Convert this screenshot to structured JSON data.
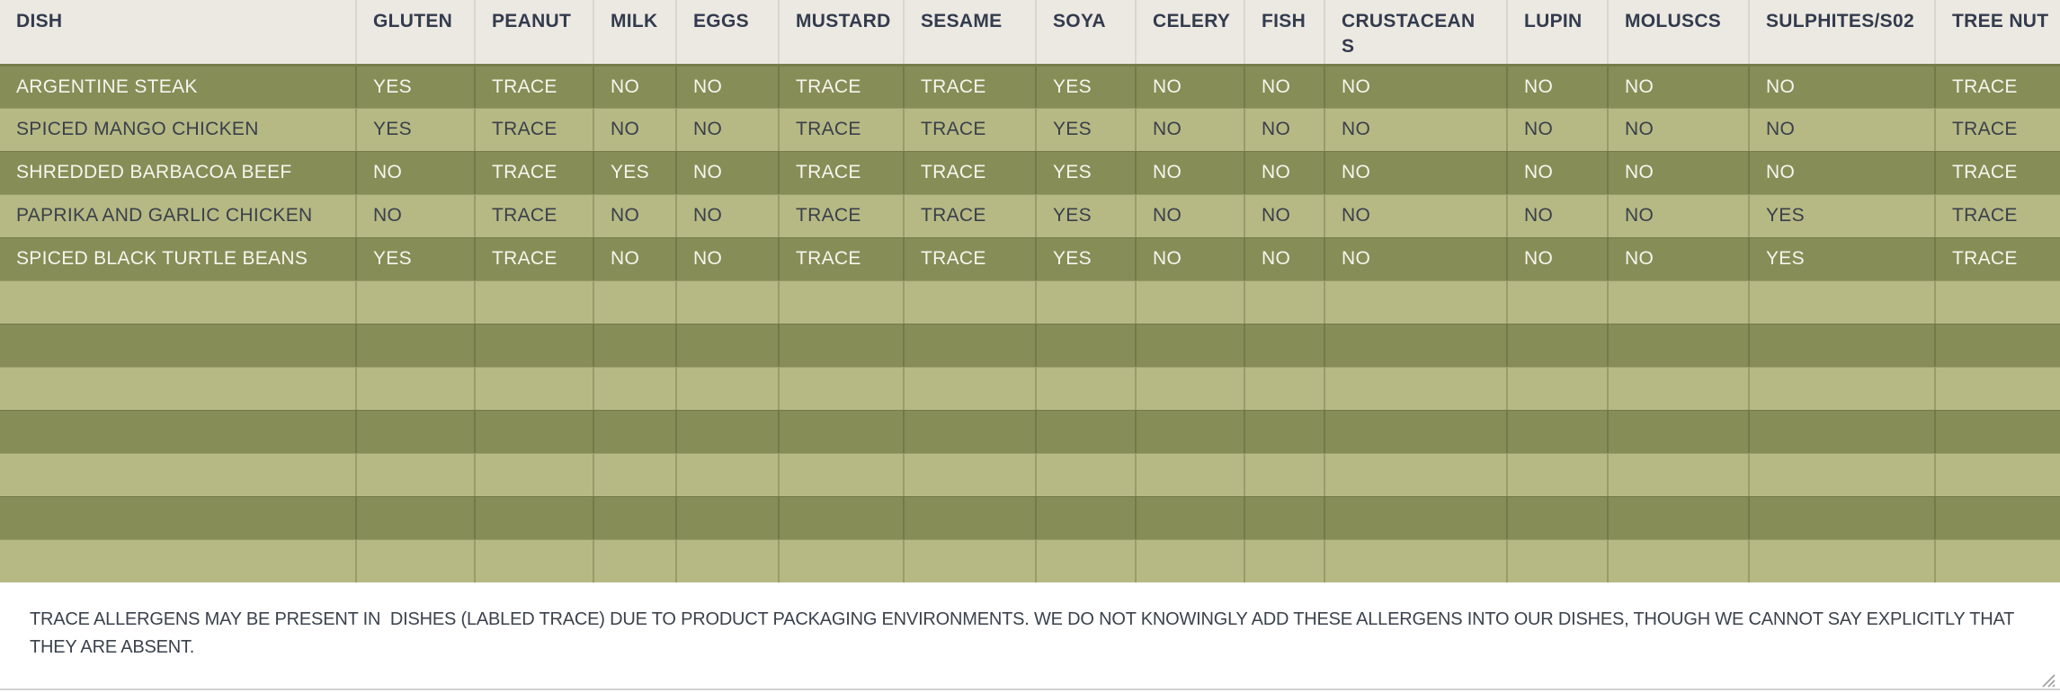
{
  "table": {
    "headers": [
      "DISH",
      "GLUTEN",
      "PEANUT",
      "MILK",
      "EGGS",
      "MUSTARD",
      "SESAME",
      "SOYA",
      "CELERY",
      "FISH",
      "CRUSTACEANS",
      "LUPIN",
      "MOLUSCS",
      "SULPHITES/S02",
      "TREE NUT"
    ],
    "rows": [
      {
        "dish": "ARGENTINE STEAK",
        "values": [
          "YES",
          "TRACE",
          "NO",
          "NO",
          "TRACE",
          "TRACE",
          "YES",
          "NO",
          "NO",
          "NO",
          "NO",
          "NO",
          "NO",
          "TRACE"
        ]
      },
      {
        "dish": "SPICED MANGO CHICKEN",
        "values": [
          "YES",
          "TRACE",
          "NO",
          "NO",
          "TRACE",
          "TRACE",
          "YES",
          "NO",
          "NO",
          "NO",
          "NO",
          "NO",
          "NO",
          "TRACE"
        ]
      },
      {
        "dish": "SHREDDED BARBACOA BEEF",
        "values": [
          "NO",
          "TRACE",
          "YES",
          "NO",
          "TRACE",
          "TRACE",
          "YES",
          "NO",
          "NO",
          "NO",
          "NO",
          "NO",
          "NO",
          "TRACE"
        ]
      },
      {
        "dish": "PAPRIKA AND GARLIC CHICKEN",
        "values": [
          "NO",
          "TRACE",
          "NO",
          "NO",
          "TRACE",
          "TRACE",
          "YES",
          "NO",
          "NO",
          "NO",
          "NO",
          "NO",
          "YES",
          "TRACE"
        ]
      },
      {
        "dish": "SPICED BLACK TURTLE BEANS",
        "values": [
          "YES",
          "TRACE",
          "NO",
          "NO",
          "TRACE",
          "TRACE",
          "YES",
          "NO",
          "NO",
          "NO",
          "NO",
          "NO",
          "YES",
          "TRACE"
        ]
      }
    ],
    "empty_row_count": 7
  },
  "footer": {
    "note": "TRACE ALLERGENS MAY BE PRESENT IN  DISHES (LABLED TRACE) DUE TO PRODUCT PACKAGING ENVIRONMENTS. WE DO NOT KNOWINGLY ADD THESE ALLERGENS INTO OUR DISHES, THOUGH WE CANNOT SAY EXPLICITLY THAT THEY ARE ABSENT."
  },
  "colors": {
    "header_bg": "#ECE9E2",
    "header_text": "#333B4D",
    "row_dark": "#868D57",
    "row_light": "#B7B985",
    "text_on_dark": "#F7F6ED",
    "text_on_light": "#3A4049",
    "footer_text": "#3A424D"
  }
}
